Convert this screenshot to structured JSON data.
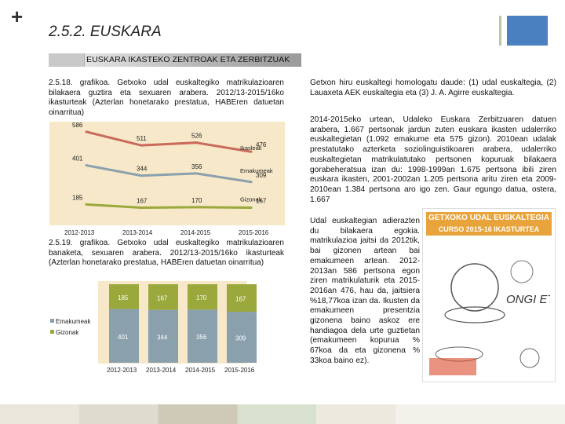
{
  "header": {
    "plus": "+",
    "title": "2.5.2. EUSKARA",
    "banner": "EUSKARA IKASTEKO ZENTROAK ETA ZERBITZUAK"
  },
  "chart1": {
    "caption": "2.5.18. grafikoa. Getxoko udal euskaltegiko matrikulazioaren bilakaera guztira eta sexuaren arabera. 2012/13-2015/16ko ikasturteak (Azterlan honetarako prestatua, HABEren datuetan oinarritua)"
  },
  "chart2": {
    "caption": "2.5.19. grafikoa. Getxoko udal euskaltegiko matrikulazioaren banaketa, sexuaren arabera. 2012/13-2015/16ko ikasturteak (Azterlan honetarako prestatua, HABEren datuetan oinarritua)"
  },
  "chart_data": [
    {
      "type": "line",
      "categories": [
        "2012-2013",
        "2013-2014",
        "2014-2015",
        "2015-2016"
      ],
      "series": [
        {
          "name": "Ikasleak",
          "values": [
            586,
            511,
            526,
            476
          ],
          "color": "#c96a5a"
        },
        {
          "name": "Emakumeak",
          "values": [
            401,
            344,
            356,
            309
          ],
          "color": "#8aa0ad"
        },
        {
          "name": "Gizonak",
          "values": [
            185,
            167,
            170,
            167
          ],
          "color": "#9aa83c"
        }
      ],
      "ylim": [
        100,
        620
      ],
      "labels": {
        "total": "Ikasleak",
        "women": "Emakumeak",
        "men": "Gizonak"
      },
      "title": "",
      "xlabel": "",
      "ylabel": ""
    },
    {
      "type": "bar",
      "stacked": true,
      "categories": [
        "2012-2013",
        "2013-2014",
        "2014-2015",
        "2015-2016"
      ],
      "series": [
        {
          "name": "Emakumeak",
          "values": [
            401,
            344,
            356,
            309
          ],
          "color": "#8aa0ad"
        },
        {
          "name": "Gizonak",
          "values": [
            185,
            167,
            170,
            167
          ],
          "color": "#9aa83c"
        }
      ],
      "ylim": [
        0,
        600
      ],
      "legend": [
        "Emakumeak",
        "Gizonak"
      ],
      "title": "",
      "xlabel": "",
      "ylabel": ""
    }
  ],
  "right": {
    "para1": "Getxon hiru euskaltegi homologatu daude: (1) udal euskaltegia, (2) Lauaxeta AEK euskaltegia eta (3) J. A. Agirre euskaltegia.",
    "para2_full": "2014-2015eko urtean, Udaleko Euskara Zerbitzuaren datuen arabera, 1.667 pertsonak jardun zuten euskara ikasten udalerriko euskaltegietan (1.092 emakume eta 575 gizon). 2010ean udalak prestatutako azterketa soziolinguistikoaren arabera, udalerriko euskaltegietan matrikulatutako pertsonen kopuruak bilakaera gorabeheratsua izan du: 1998-1999an 1.675 pertsona ibili ziren euskara ikasten, 2001-2002an 1.205 pertsona aritu ziren eta 2009-2010ean 1.384 pertsona aro igo zen. Gaur egungo datua, ostera, 1.667",
    "para3_side": "Udal euskaltegian adierazten du bilakaera egokia. matrikulazioa jaitsi da 2012tik, bai gizonen artean bai emakumeen artean. 2012-2013an 586 pertsona egon ziren matrikulaturik eta 2015-2016an 476, hau da, jaitsiera %18,77koa izan da. Ikusten da emakumeen presentzia gizonena baino askoz ere handiagoa dela urte guztietan (emakumeen kopurua % 67koa da eta gizonena % 33koa baino ez)."
  },
  "poster": {
    "head": "GETXOKO UDAL EUSKALTEGIA",
    "subhead": "CURSO 2015-16 IKASTURTEA",
    "slogan": "ONGI ETORRI"
  },
  "colors": {
    "chart_bg": "#f6e8c8",
    "banner": "#b6b6b6",
    "accent_blue": "#4a7fc0"
  }
}
